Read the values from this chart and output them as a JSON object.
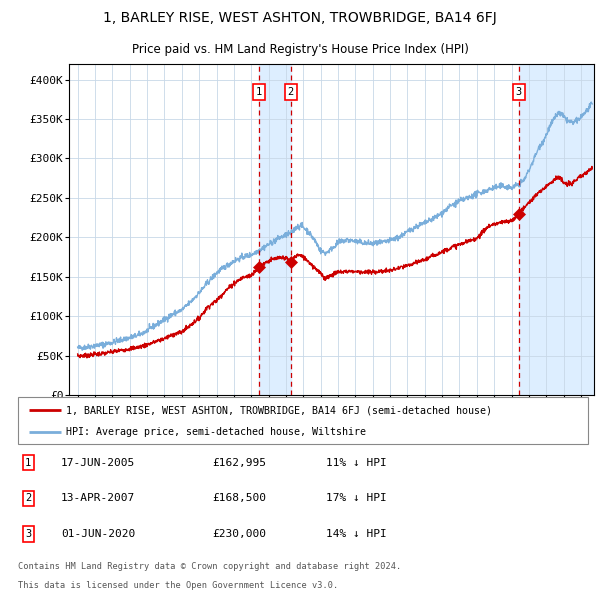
{
  "title": "1, BARLEY RISE, WEST ASHTON, TROWBRIDGE, BA14 6FJ",
  "subtitle": "Price paid vs. HM Land Registry's House Price Index (HPI)",
  "legend_line1": "1, BARLEY RISE, WEST ASHTON, TROWBRIDGE, BA14 6FJ (semi-detached house)",
  "legend_line2": "HPI: Average price, semi-detached house, Wiltshire",
  "transactions": [
    {
      "num": 1,
      "date": "17-JUN-2005",
      "date_dec": 2005.46,
      "price": 162995,
      "note": "11% ↓ HPI"
    },
    {
      "num": 2,
      "date": "13-APR-2007",
      "date_dec": 2007.28,
      "price": 168500,
      "note": "17% ↓ HPI"
    },
    {
      "num": 3,
      "date": "01-JUN-2020",
      "date_dec": 2020.42,
      "price": 230000,
      "note": "14% ↓ HPI"
    }
  ],
  "footer1": "Contains HM Land Registry data © Crown copyright and database right 2024.",
  "footer2": "This data is licensed under the Open Government Licence v3.0.",
  "hpi_color": "#7aaedb",
  "price_color": "#cc0000",
  "bg_color": "#ffffff",
  "plot_bg_color": "#ffffff",
  "grid_color": "#c8d8e8",
  "highlight_bg": "#ddeeff",
  "ylim": [
    0,
    420000
  ],
  "yticks": [
    0,
    50000,
    100000,
    150000,
    200000,
    250000,
    300000,
    350000,
    400000
  ],
  "xlim_start": 1994.5,
  "xlim_end": 2024.75
}
